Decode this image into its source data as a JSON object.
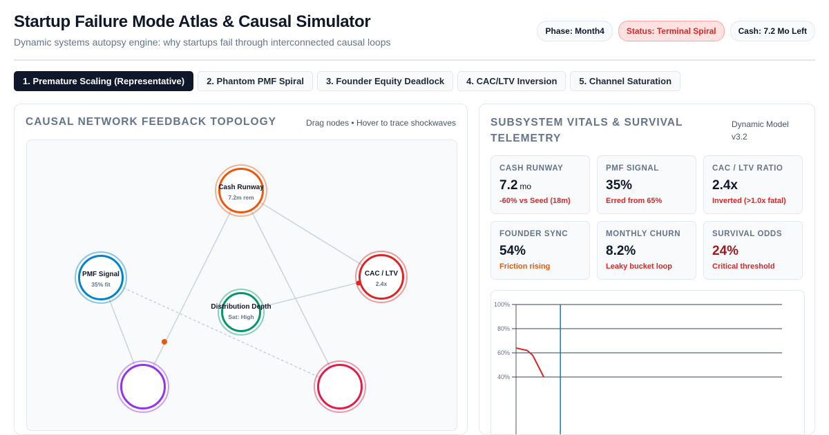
{
  "header": {
    "title": "Startup Failure Mode Atlas & Causal Simulator",
    "subtitle": "Dynamic systems autopsy engine: why startups fail through interconnected causal loops",
    "badges": {
      "phase": "Phase: Month4",
      "status": "Status: Terminal Spiral",
      "cash": "Cash: 7.2 Mo Left"
    }
  },
  "tabs": [
    {
      "label": "1. Premature Scaling (Representative)",
      "active": true
    },
    {
      "label": "2. Phantom PMF Spiral",
      "active": false
    },
    {
      "label": "3. Founder Equity Deadlock",
      "active": false
    },
    {
      "label": "4. CAC/LTV Inversion",
      "active": false
    },
    {
      "label": "5. Channel Saturation",
      "active": false
    }
  ],
  "network": {
    "title": "Causal Network Feedback Topology",
    "hint": "Drag nodes • Hover to trace shockwaves",
    "nodes": {
      "cash": {
        "label": "Cash Runway",
        "sub": "7.2m rem",
        "color": "#ea580c"
      },
      "pmf": {
        "label": "PMF Signal",
        "sub": "35% fit",
        "color": "#0284c7"
      },
      "caclv": {
        "label": "CAC / LTV",
        "sub": "2.4x",
        "color": "#dc2626"
      },
      "dist": {
        "label": "Distribution Depth",
        "sub": "Sat: High",
        "color": "#059669"
      },
      "team": {
        "label": "",
        "sub": "",
        "color": "#9333ea"
      },
      "churn": {
        "label": "",
        "sub": "",
        "color": "#e11d48"
      }
    }
  },
  "vitals": {
    "title": "Subsystem Vitals & Survival Telemetry",
    "model": "Dynamic Model v3.2",
    "cards": [
      {
        "label": "Cash Runway",
        "value": "7.2",
        "unit": "mo",
        "note": "-60% vs Seed (18m)"
      },
      {
        "label": "PMF Signal",
        "value": "35%",
        "unit": "",
        "note": "Erred from 65%"
      },
      {
        "label": "CAC / LTV Ratio",
        "value": "2.4x",
        "unit": "",
        "note": "Inverted (>1.0x fatal)"
      },
      {
        "label": "Founder Sync",
        "value": "54%",
        "unit": "",
        "note": "Friction rising"
      },
      {
        "label": "Monthly Churn",
        "value": "8.2%",
        "unit": "",
        "note": "Leaky bucket loop"
      },
      {
        "label": "Survival Odds",
        "value": "24%",
        "unit": "",
        "note": "Critical threshold"
      }
    ]
  },
  "chart_data": {
    "type": "line",
    "y_tick_labels": [
      "100%",
      "80%",
      "60%",
      "40%"
    ],
    "ylim": [
      0,
      100
    ],
    "xlim": [
      0,
      24
    ],
    "current_marker_x": 4,
    "series": [
      {
        "color": "#dc2626",
        "x": [
          0,
          1,
          1.5,
          2.5
        ],
        "y": [
          64,
          62,
          58,
          40
        ]
      }
    ]
  }
}
